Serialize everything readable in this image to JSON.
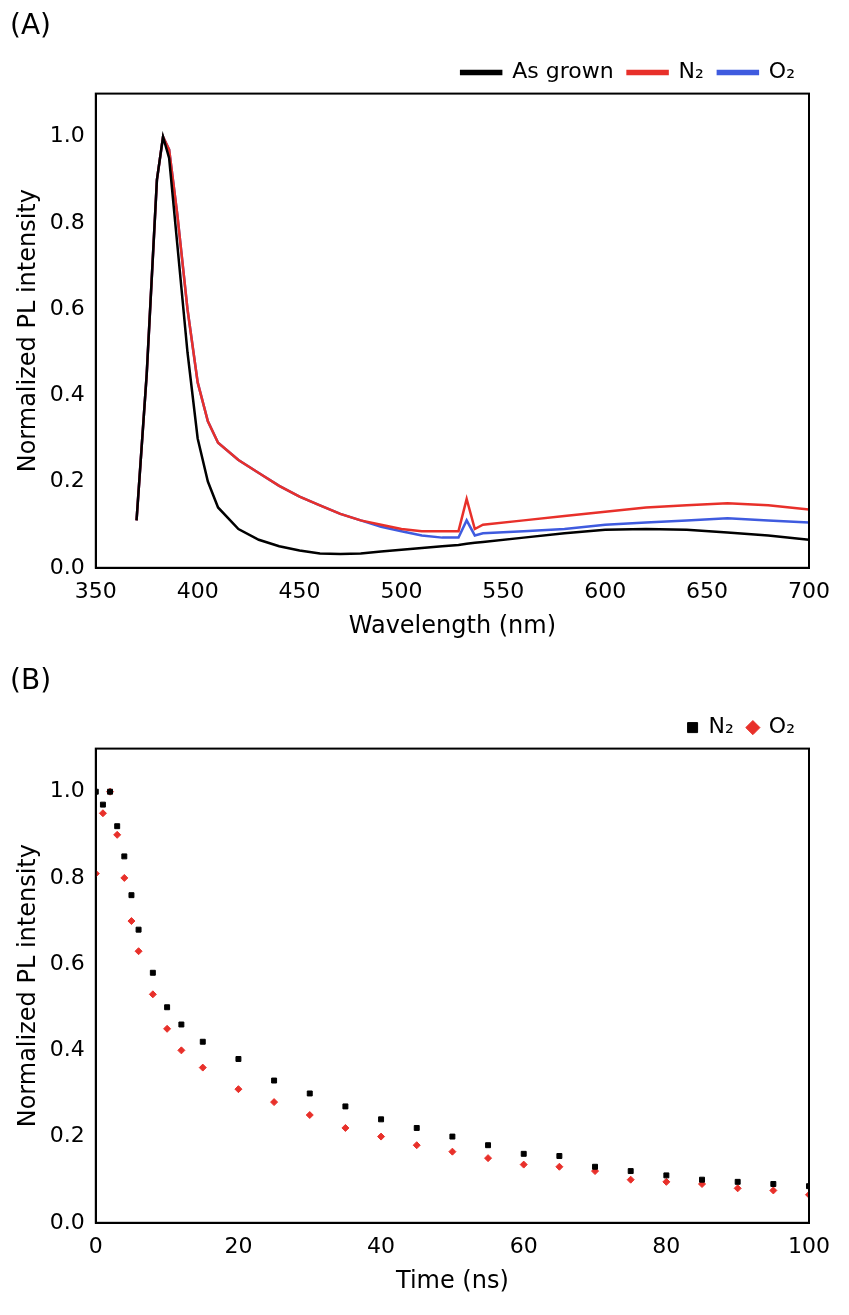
{
  "chart_data": [
    {
      "type": "line",
      "title": "(A)",
      "x_label": "Wavelength (nm)",
      "y_label": "Normalized PL intensity",
      "x": [
        370,
        375,
        380,
        383,
        386,
        390,
        395,
        400,
        405,
        410,
        420,
        430,
        440,
        450,
        460,
        470,
        480,
        490,
        500,
        510,
        520,
        528,
        532,
        536,
        540,
        560,
        580,
        600,
        620,
        640,
        660,
        680,
        700
      ],
      "series": [
        {
          "name": "As grown",
          "color": "#000000",
          "values": [
            0.11,
            0.45,
            0.9,
            1.0,
            0.95,
            0.75,
            0.5,
            0.3,
            0.2,
            0.14,
            0.09,
            0.065,
            0.05,
            0.04,
            0.033,
            0.032,
            0.033,
            0.038,
            0.042,
            0.046,
            0.05,
            0.053,
            0.056,
            0.058,
            0.06,
            0.07,
            0.08,
            0.088,
            0.09,
            0.088,
            0.082,
            0.075,
            0.065
          ]
        },
        {
          "name": "N₂",
          "color": "#e8302a",
          "values": [
            0.11,
            0.45,
            0.9,
            1.0,
            0.97,
            0.82,
            0.6,
            0.43,
            0.34,
            0.29,
            0.25,
            0.22,
            0.19,
            0.165,
            0.145,
            0.125,
            0.11,
            0.1,
            0.09,
            0.085,
            0.085,
            0.085,
            0.16,
            0.09,
            0.1,
            0.11,
            0.12,
            0.13,
            0.14,
            0.145,
            0.15,
            0.145,
            0.135
          ]
        },
        {
          "name": "O₂",
          "color": "#3f5bdf",
          "values": [
            0.11,
            0.45,
            0.9,
            1.0,
            0.97,
            0.82,
            0.6,
            0.43,
            0.34,
            0.29,
            0.25,
            0.22,
            0.19,
            0.165,
            0.145,
            0.125,
            0.11,
            0.095,
            0.085,
            0.075,
            0.07,
            0.07,
            0.11,
            0.075,
            0.08,
            0.085,
            0.09,
            0.1,
            0.105,
            0.11,
            0.115,
            0.11,
            0.105
          ]
        }
      ],
      "xlim": [
        350,
        700
      ],
      "xticks": [
        350,
        400,
        450,
        500,
        550,
        600,
        650,
        700
      ],
      "ylim": [
        0,
        1.1
      ],
      "yticks": [
        {
          "value": 0,
          "label": "0.0"
        },
        {
          "value": 0.2,
          "label": "0.2"
        },
        {
          "value": 0.4,
          "label": "0.4"
        },
        {
          "value": 0.6,
          "label": "0.6"
        },
        {
          "value": 0.8,
          "label": "0.8"
        },
        {
          "value": 1.0,
          "label": "1.0"
        }
      ],
      "grid": false,
      "legend": "upper right"
    },
    {
      "type": "scatter",
      "title": "(B)",
      "x_label": "Time (ns)",
      "y_label": "Normalized PL intensity",
      "x": [
        0,
        1,
        2,
        3,
        4,
        5,
        6,
        8,
        10,
        12,
        15,
        20,
        25,
        30,
        35,
        40,
        45,
        50,
        55,
        60,
        65,
        70,
        75,
        80,
        85,
        90,
        95,
        100
      ],
      "series": [
        {
          "name": "N₂",
          "color": "#000000",
          "marker": "square",
          "values": [
            1.0,
            0.97,
            1.0,
            0.92,
            0.85,
            0.76,
            0.68,
            0.58,
            0.5,
            0.46,
            0.42,
            0.38,
            0.33,
            0.3,
            0.27,
            0.24,
            0.22,
            0.2,
            0.18,
            0.16,
            0.155,
            0.13,
            0.12,
            0.11,
            0.1,
            0.095,
            0.09,
            0.085
          ]
        },
        {
          "name": "O₂",
          "color": "#e8302a",
          "marker": "diamond",
          "values": [
            0.81,
            0.95,
            1.0,
            0.9,
            0.8,
            0.7,
            0.63,
            0.53,
            0.45,
            0.4,
            0.36,
            0.31,
            0.28,
            0.25,
            0.22,
            0.2,
            0.18,
            0.165,
            0.15,
            0.135,
            0.13,
            0.12,
            0.1,
            0.095,
            0.09,
            0.08,
            0.075,
            0.065
          ]
        }
      ],
      "xlim": [
        0,
        100
      ],
      "xticks": [
        0,
        20,
        40,
        60,
        80,
        100
      ],
      "ylim": [
        0,
        1.1
      ],
      "yticks": [
        {
          "value": 0,
          "label": "0.0"
        },
        {
          "value": 0.2,
          "label": "0.2"
        },
        {
          "value": 0.4,
          "label": "0.4"
        },
        {
          "value": 0.6,
          "label": "0.6"
        },
        {
          "value": 0.8,
          "label": "0.8"
        },
        {
          "value": 1.0,
          "label": "1.0"
        }
      ],
      "grid": false,
      "legend": "upper right"
    }
  ]
}
